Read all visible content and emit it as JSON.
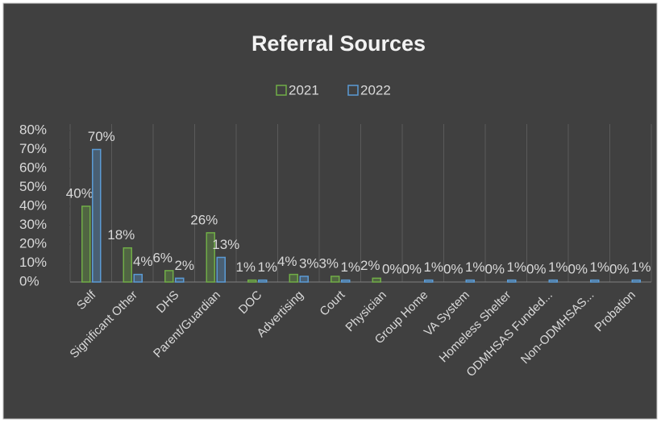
{
  "chart_data": {
    "type": "bar",
    "title": "Referral Sources",
    "categories": [
      "Self",
      "Significant Other",
      "DHS",
      "Parent/Guardian",
      "DOC",
      "Advertising",
      "Court",
      "Physician",
      "Group Home",
      "VA System",
      "Homeless Shelter",
      "ODMHSAS Funded...",
      "Non-ODMHSAS...",
      "Probation"
    ],
    "series": [
      {
        "name": "2021",
        "color": "#70ad47",
        "values": [
          40,
          18,
          6,
          26,
          1,
          4,
          3,
          2,
          0,
          0,
          0,
          0,
          0,
          0
        ],
        "value_labels": [
          "40%",
          "18%",
          "6%",
          "26%",
          "1%",
          "4%",
          "3%",
          "2%",
          "0%",
          "0%",
          "0%",
          "0%",
          "0%",
          "0%"
        ]
      },
      {
        "name": "2022",
        "color": "#5b9bd5",
        "values": [
          70,
          4,
          2,
          13,
          1,
          3,
          1,
          0,
          1,
          1,
          1,
          1,
          1,
          1
        ],
        "value_labels": [
          "70%",
          "4%",
          "2%",
          "13%",
          "1%",
          "3%",
          "1%",
          "0%",
          "1%",
          "1%",
          "1%",
          "1%",
          "1%",
          "1%"
        ]
      }
    ],
    "ylim": [
      0,
      80
    ],
    "yticks": [
      {
        "value": 0,
        "label": "0%"
      },
      {
        "value": 10,
        "label": "10%"
      },
      {
        "value": 20,
        "label": "20%"
      },
      {
        "value": 30,
        "label": "30%"
      },
      {
        "value": 40,
        "label": "40%"
      },
      {
        "value": 50,
        "label": "50%"
      },
      {
        "value": 60,
        "label": "60%"
      },
      {
        "value": 70,
        "label": "70%"
      },
      {
        "value": 80,
        "label": "80%"
      }
    ],
    "legend": "top"
  }
}
